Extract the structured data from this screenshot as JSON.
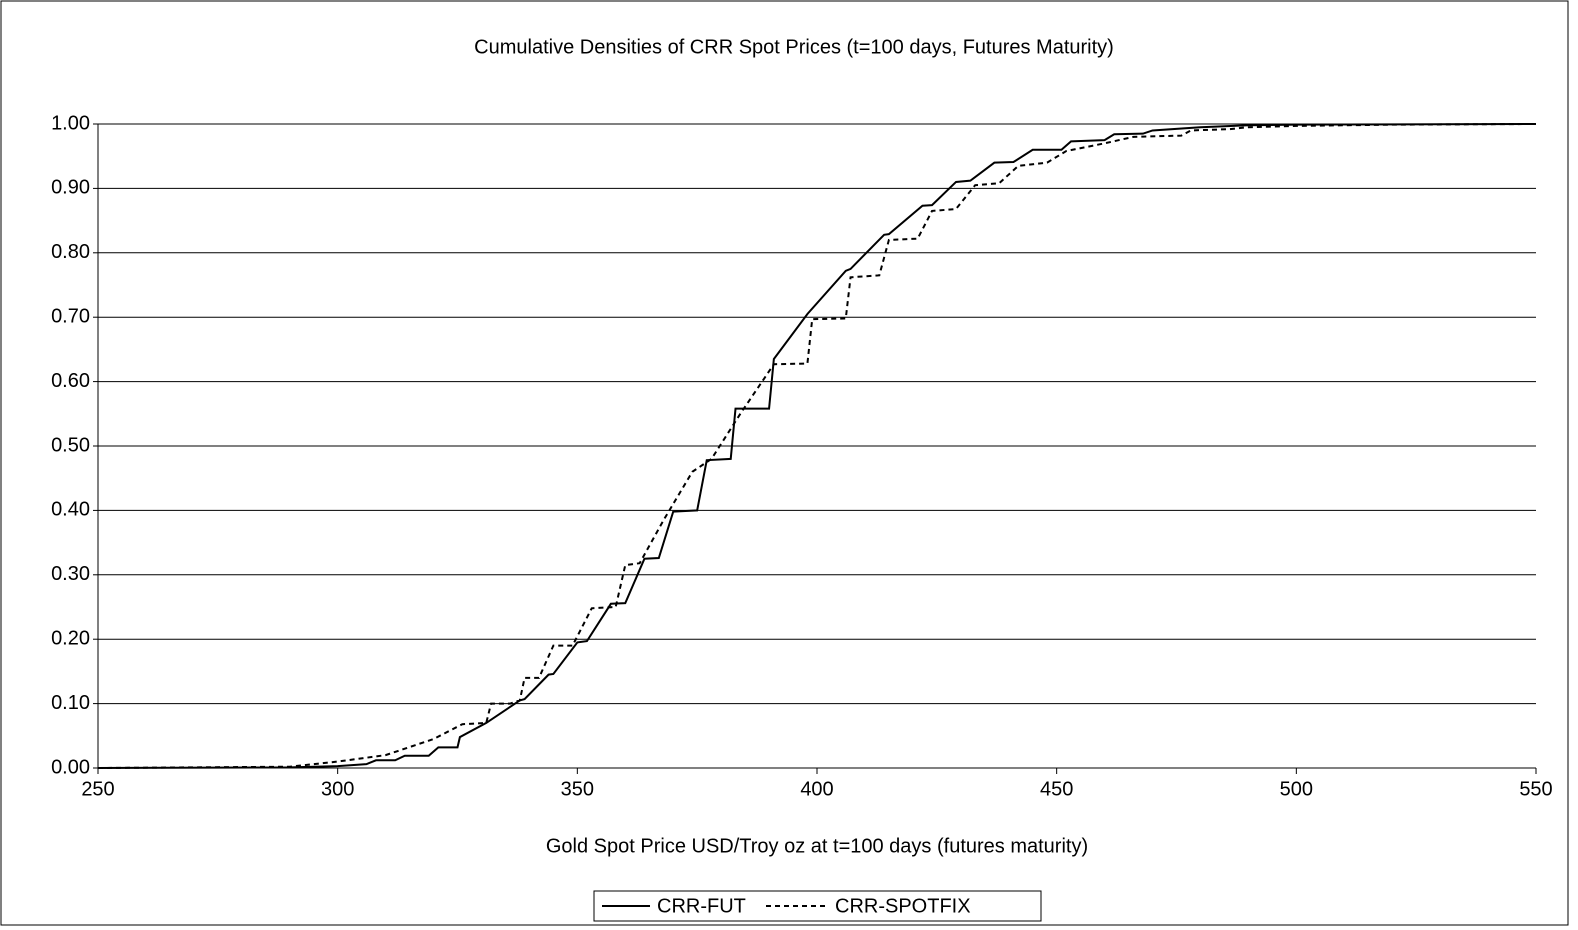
{
  "chart_data": {
    "type": "line",
    "title": "Cumulative Densities of CRR Spot Prices (t=100 days, Futures Maturity)",
    "x_label": "Gold Spot Price USD/Troy oz at t=100 days (futures maturity)",
    "xlim": [
      250,
      550
    ],
    "xticks": [
      250,
      300,
      350,
      400,
      450,
      500,
      550
    ],
    "ylim": [
      0,
      1
    ],
    "yticks": [
      {
        "value": 0,
        "label": "0.00"
      },
      {
        "value": 0.1,
        "label": "0.10"
      },
      {
        "value": 0.2,
        "label": "0.20"
      },
      {
        "value": 0.3,
        "label": "0.30"
      },
      {
        "value": 0.4,
        "label": "0.40"
      },
      {
        "value": 0.5,
        "label": "0.50"
      },
      {
        "value": 0.6,
        "label": "0.60"
      },
      {
        "value": 0.7,
        "label": "0.70"
      },
      {
        "value": 0.8,
        "label": "0.80"
      },
      {
        "value": 0.9,
        "label": "0.90"
      },
      {
        "value": 1,
        "label": "1.00"
      }
    ],
    "grid": true,
    "legend": "bottom",
    "series": [
      {
        "name": "CRR-FUT",
        "color": "#000000",
        "dash": "solid",
        "x": [
          250,
          290,
          300,
          306,
          308,
          312,
          314,
          319,
          321,
          325,
          325.5,
          331,
          338,
          339,
          344,
          345,
          350,
          352,
          357,
          360,
          364,
          367,
          370,
          375,
          377,
          382,
          383,
          390,
          391,
          398,
          406,
          407,
          414,
          415,
          422,
          424,
          429,
          432,
          437,
          441,
          445,
          451,
          453,
          460,
          462,
          468,
          470,
          480,
          490,
          500,
          550
        ],
        "values": [
          0,
          0.001,
          0.003,
          0.006,
          0.012,
          0.012,
          0.019,
          0.019,
          0.032,
          0.032,
          0.048,
          0.07,
          0.105,
          0.107,
          0.145,
          0.146,
          0.195,
          0.197,
          0.255,
          0.256,
          0.325,
          0.326,
          0.398,
          0.4,
          0.478,
          0.48,
          0.558,
          0.558,
          0.635,
          0.705,
          0.772,
          0.775,
          0.828,
          0.829,
          0.873,
          0.874,
          0.91,
          0.912,
          0.94,
          0.941,
          0.96,
          0.96,
          0.973,
          0.975,
          0.984,
          0.985,
          0.99,
          0.995,
          0.998,
          0.999,
          1
        ]
      },
      {
        "name": "CRR-SPOTFIX",
        "color": "#000000",
        "dash": "dotted",
        "x": [
          250,
          290,
          300,
          310,
          320,
          326,
          331,
          332,
          336,
          338,
          339,
          342,
          345,
          349,
          353,
          358,
          360,
          363,
          368,
          374,
          378,
          384,
          391,
          398,
          399,
          406,
          407,
          413,
          415,
          421,
          424,
          429,
          433,
          438,
          442,
          448,
          452,
          460,
          466,
          476,
          478,
          486,
          490,
          500,
          520,
          550
        ],
        "values": [
          0,
          0.002,
          0.01,
          0.02,
          0.045,
          0.068,
          0.07,
          0.1,
          0.1,
          0.105,
          0.14,
          0.14,
          0.19,
          0.19,
          0.248,
          0.25,
          0.315,
          0.318,
          0.385,
          0.46,
          0.48,
          0.55,
          0.627,
          0.628,
          0.697,
          0.698,
          0.762,
          0.765,
          0.82,
          0.822,
          0.865,
          0.868,
          0.905,
          0.908,
          0.935,
          0.94,
          0.958,
          0.97,
          0.98,
          0.982,
          0.99,
          0.992,
          0.995,
          0.997,
          0.999,
          1
        ]
      }
    ]
  }
}
